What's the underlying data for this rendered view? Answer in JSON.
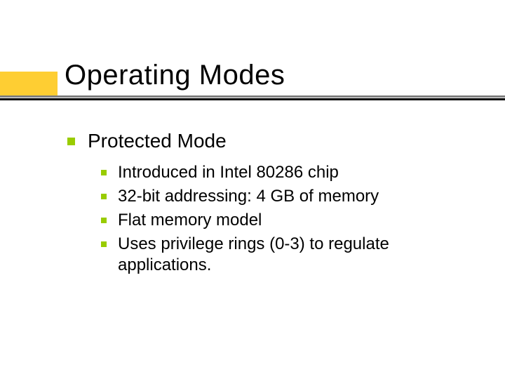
{
  "slide": {
    "title": "Operating Modes",
    "level1": {
      "text": "Protected Mode",
      "children": [
        {
          "text": "Introduced in Intel 80286 chip"
        },
        {
          "text": "32-bit addressing:  4 GB of memory"
        },
        {
          "text": "Flat memory model"
        },
        {
          "text": "Uses privilege rings (0-3) to regulate applications."
        }
      ]
    }
  },
  "style": {
    "background_color": "#ffffff",
    "title_fontsize": 40,
    "title_color": "#000000",
    "title_bar_color": "#fece33",
    "line_top_color": "#808080",
    "line_bottom_color": "#000000",
    "bullet_color": "#99cc00",
    "level1_fontsize": 28,
    "level2_fontsize": 24,
    "text_color": "#000000",
    "font_family": "Verdana, Geneva, sans-serif"
  }
}
